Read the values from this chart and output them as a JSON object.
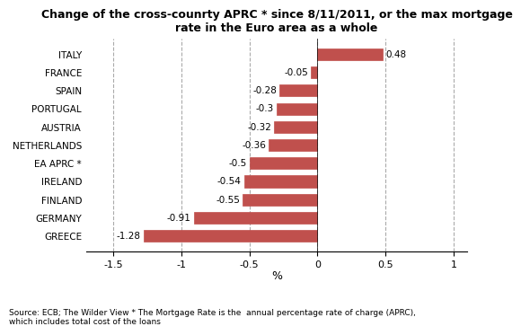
{
  "title_line1": "Change of the cross-counrty APRC * since 8/11/2011, or the max mortgage",
  "title_line2": "rate in the Euro area as a whole",
  "categories": [
    "GREECE",
    "GERMANY",
    "FINLAND",
    "IRELAND",
    "EA APRC *",
    "NETHERLANDS",
    "AUSTRIA",
    "PORTUGAL",
    "SPAIN",
    "FRANCE",
    "ITALY"
  ],
  "values": [
    -1.28,
    -0.91,
    -0.55,
    -0.54,
    -0.5,
    -0.36,
    -0.32,
    -0.3,
    -0.28,
    -0.05,
    0.48
  ],
  "bar_color": "#c0504d",
  "xlim": [
    -1.7,
    1.1
  ],
  "xticks": [
    -1.5,
    -1.0,
    -0.5,
    0.0,
    0.5,
    1.0
  ],
  "xtick_labels": [
    "-1.5",
    "-1",
    "-0.5",
    "0",
    "0.5",
    "1"
  ],
  "xlabel": "%",
  "footnote": "Source: ECB; The Wilder View * The Mortgage Rate is the  annual percentage rate of charge (APRC),\nwhich includes total cost of the loans",
  "bg_color": "#ffffff",
  "grid_color": "#aaaaaa"
}
